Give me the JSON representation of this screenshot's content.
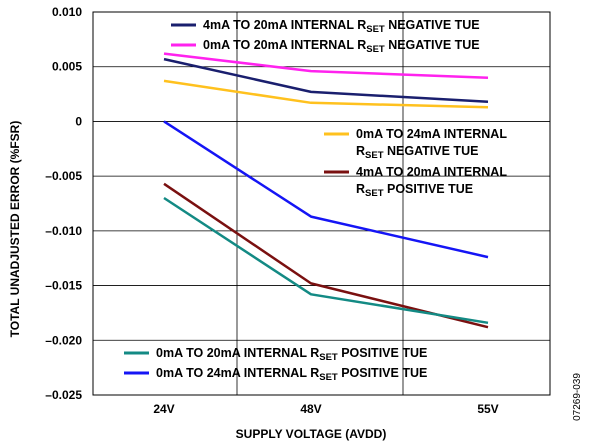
{
  "chart_data": {
    "type": "line",
    "xlabel": "SUPPLY VOLTAGE (AVDD)",
    "ylabel": "TOTAL UNADJUSTED ERROR (%FSR)",
    "categories": [
      "24V",
      "48V",
      "55V"
    ],
    "ylim": [
      -0.025,
      0.01
    ],
    "yticks": [
      {
        "value": 0.01,
        "label": "0.010"
      },
      {
        "value": 0.005,
        "label": "0.005"
      },
      {
        "value": 0,
        "label": "0"
      },
      {
        "value": -0.005,
        "label": "–0.005"
      },
      {
        "value": -0.01,
        "label": "–0.010"
      },
      {
        "value": -0.015,
        "label": "–0.015"
      },
      {
        "value": -0.02,
        "label": "–0.020"
      },
      {
        "value": -0.025,
        "label": "–0.025"
      }
    ],
    "grid": true,
    "series": [
      {
        "name": "4mA TO 20mA INTERNAL RSET NEGATIVE TUE",
        "label_main": "4mA TO 20mA INTERNAL R",
        "label_sub": "SET",
        "label_tail": " NEGATIVE TUE",
        "color": "#1a1f6e",
        "values": [
          0.0057,
          0.0027,
          0.0018
        ]
      },
      {
        "name": "0mA TO 20mA INTERNAL RSET NEGATIVE TUE",
        "label_main": "0mA TO 20mA INTERNAL R",
        "label_sub": "SET",
        "label_tail": " NEGATIVE TUE",
        "color": "#ff22ee",
        "values": [
          0.0062,
          0.0046,
          0.004
        ]
      },
      {
        "name": "0mA TO 24mA INTERNAL RSET NEGATIVE TUE",
        "label_main": "0mA TO 24mA INTERNAL",
        "label_main2": "R",
        "label_sub": "SET",
        "label_tail": " NEGATIVE TUE",
        "color": "#ffc11e",
        "values": [
          0.0037,
          0.0017,
          0.0013
        ]
      },
      {
        "name": "4mA TO 20mA INTERNAL RSET POSITIVE TUE",
        "label_main": "4mA TO 20mA INTERNAL",
        "label_main2": "R",
        "label_sub": "SET",
        "label_tail": " POSITIVE TUE",
        "color": "#7a1010",
        "values": [
          -0.0057,
          -0.0148,
          -0.0188
        ]
      },
      {
        "name": "0mA TO 20mA INTERNAL RSET POSITIVE TUE",
        "label_main": "0mA TO 20mA INTERNAL R",
        "label_sub": "SET",
        "label_tail": " POSITIVE TUE",
        "color": "#138a84",
        "values": [
          -0.007,
          -0.0158,
          -0.0184
        ]
      },
      {
        "name": "0mA TO 24mA INTERNAL RSET POSITIVE TUE",
        "label_main": "0mA TO 24mA INTERNAL R",
        "label_sub": "SET",
        "label_tail": " POSITIVE TUE",
        "color": "#1515f5",
        "values": [
          0.0,
          -0.0087,
          -0.0124
        ]
      }
    ]
  },
  "figure_id": "07269-039"
}
